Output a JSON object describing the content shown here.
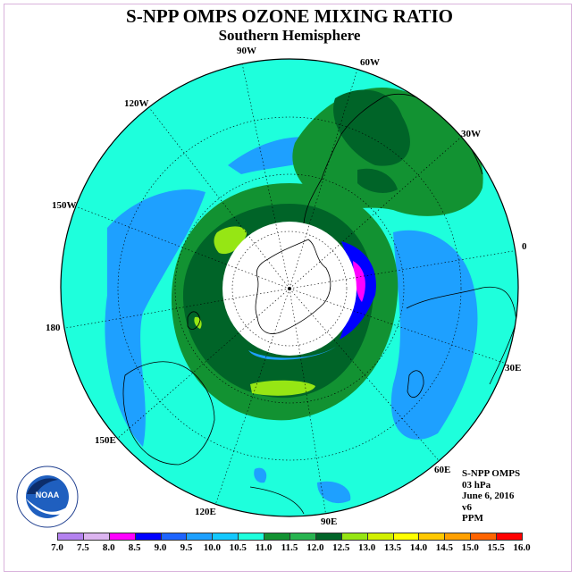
{
  "title": "S-NPP OMPS OZONE MIXING RATIO",
  "subtitle": "Southern Hemisphere",
  "longitude_labels": [
    "90W",
    "60W",
    "30W",
    "0",
    "30E",
    "60E",
    "90E",
    "120E",
    "150E",
    "180",
    "150W",
    "120W"
  ],
  "info": {
    "instrument": "S-NPP OMPS",
    "level": "03 hPa",
    "date": "June 6, 2016",
    "version": "v6",
    "units": "PPM"
  },
  "logo": {
    "text": "NOAA",
    "ring_text": "NATIONAL OCEANIC AND ATMOSPHERIC ADMINISTRATION",
    "ring_text_bottom": "U.S. DEPARTMENT OF COMMERCE"
  },
  "colorbar": {
    "ticks": [
      "7.0",
      "7.5",
      "8.0",
      "8.5",
      "9.0",
      "9.5",
      "10.0",
      "10.5",
      "11.0",
      "11.5",
      "12.0",
      "12.5",
      "13.0",
      "13.5",
      "14.0",
      "14.5",
      "15.0",
      "15.5",
      "16.0"
    ],
    "colors": [
      "#b482f0",
      "#dcb4f0",
      "#ff00ff",
      "#0000ff",
      "#1e64ff",
      "#1ea0ff",
      "#14c8ff",
      "#1effdc",
      "#129232",
      "#28b450",
      "#006428",
      "#96e614",
      "#d2f000",
      "#ffff00",
      "#ffc800",
      "#ffa000",
      "#ff6400",
      "#ff0000",
      "#964b32"
    ]
  },
  "colors": {
    "background_field": "#1effdc",
    "lower_band": "#1ea0ff",
    "ring_band": "#129232",
    "ring_inner": "#006428",
    "maximum": "#96e614",
    "no_data": "#ffffff"
  }
}
